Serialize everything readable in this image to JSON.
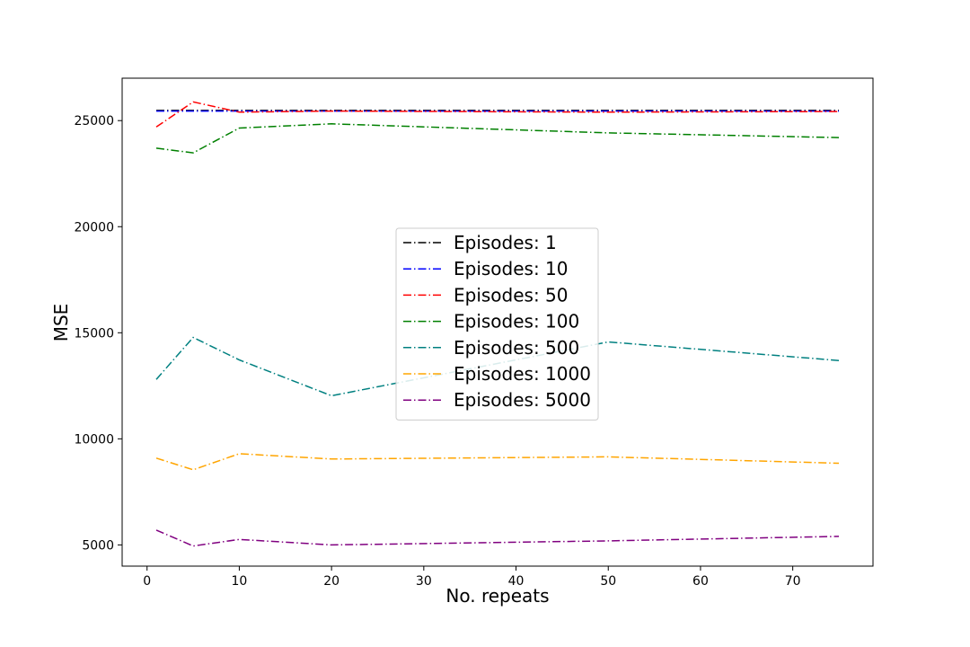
{
  "chart_data": {
    "type": "line",
    "title": "",
    "xlabel": "No. repeats",
    "ylabel": "MSE",
    "xlim": [
      -2.7,
      78.7
    ],
    "ylim": [
      4000,
      27000
    ],
    "xticks": [
      0,
      10,
      20,
      30,
      40,
      50,
      60,
      70
    ],
    "yticks": [
      5000,
      10000,
      15000,
      20000,
      25000
    ],
    "grid": false,
    "legend_position": "center",
    "line_style": "dash-dot",
    "x": [
      1,
      5,
      10,
      20,
      50,
      75
    ],
    "series": [
      {
        "name": "Episodes: 1",
        "color": "#000000",
        "values": [
          25480,
          25480,
          25480,
          25480,
          25480,
          25480
        ]
      },
      {
        "name": "Episodes: 10",
        "color": "#0000ff",
        "values": [
          25450,
          25450,
          25450,
          25450,
          25450,
          25450
        ]
      },
      {
        "name": "Episodes: 50",
        "color": "#ff0000",
        "values": [
          24700,
          25880,
          25400,
          25450,
          25400,
          25430
        ]
      },
      {
        "name": "Episodes: 100",
        "color": "#008000",
        "values": [
          23700,
          23480,
          24650,
          24850,
          24420,
          24200
        ]
      },
      {
        "name": "Episodes: 500",
        "color": "#008080",
        "values": [
          12800,
          14780,
          13720,
          12030,
          14570,
          13690
        ]
      },
      {
        "name": "Episodes: 1000",
        "color": "#ffa500",
        "values": [
          9090,
          8540,
          9300,
          9050,
          9150,
          8850
        ]
      },
      {
        "name": "Episodes: 5000",
        "color": "#800080",
        "values": [
          5700,
          4950,
          5260,
          5000,
          5190,
          5400
        ]
      }
    ]
  }
}
